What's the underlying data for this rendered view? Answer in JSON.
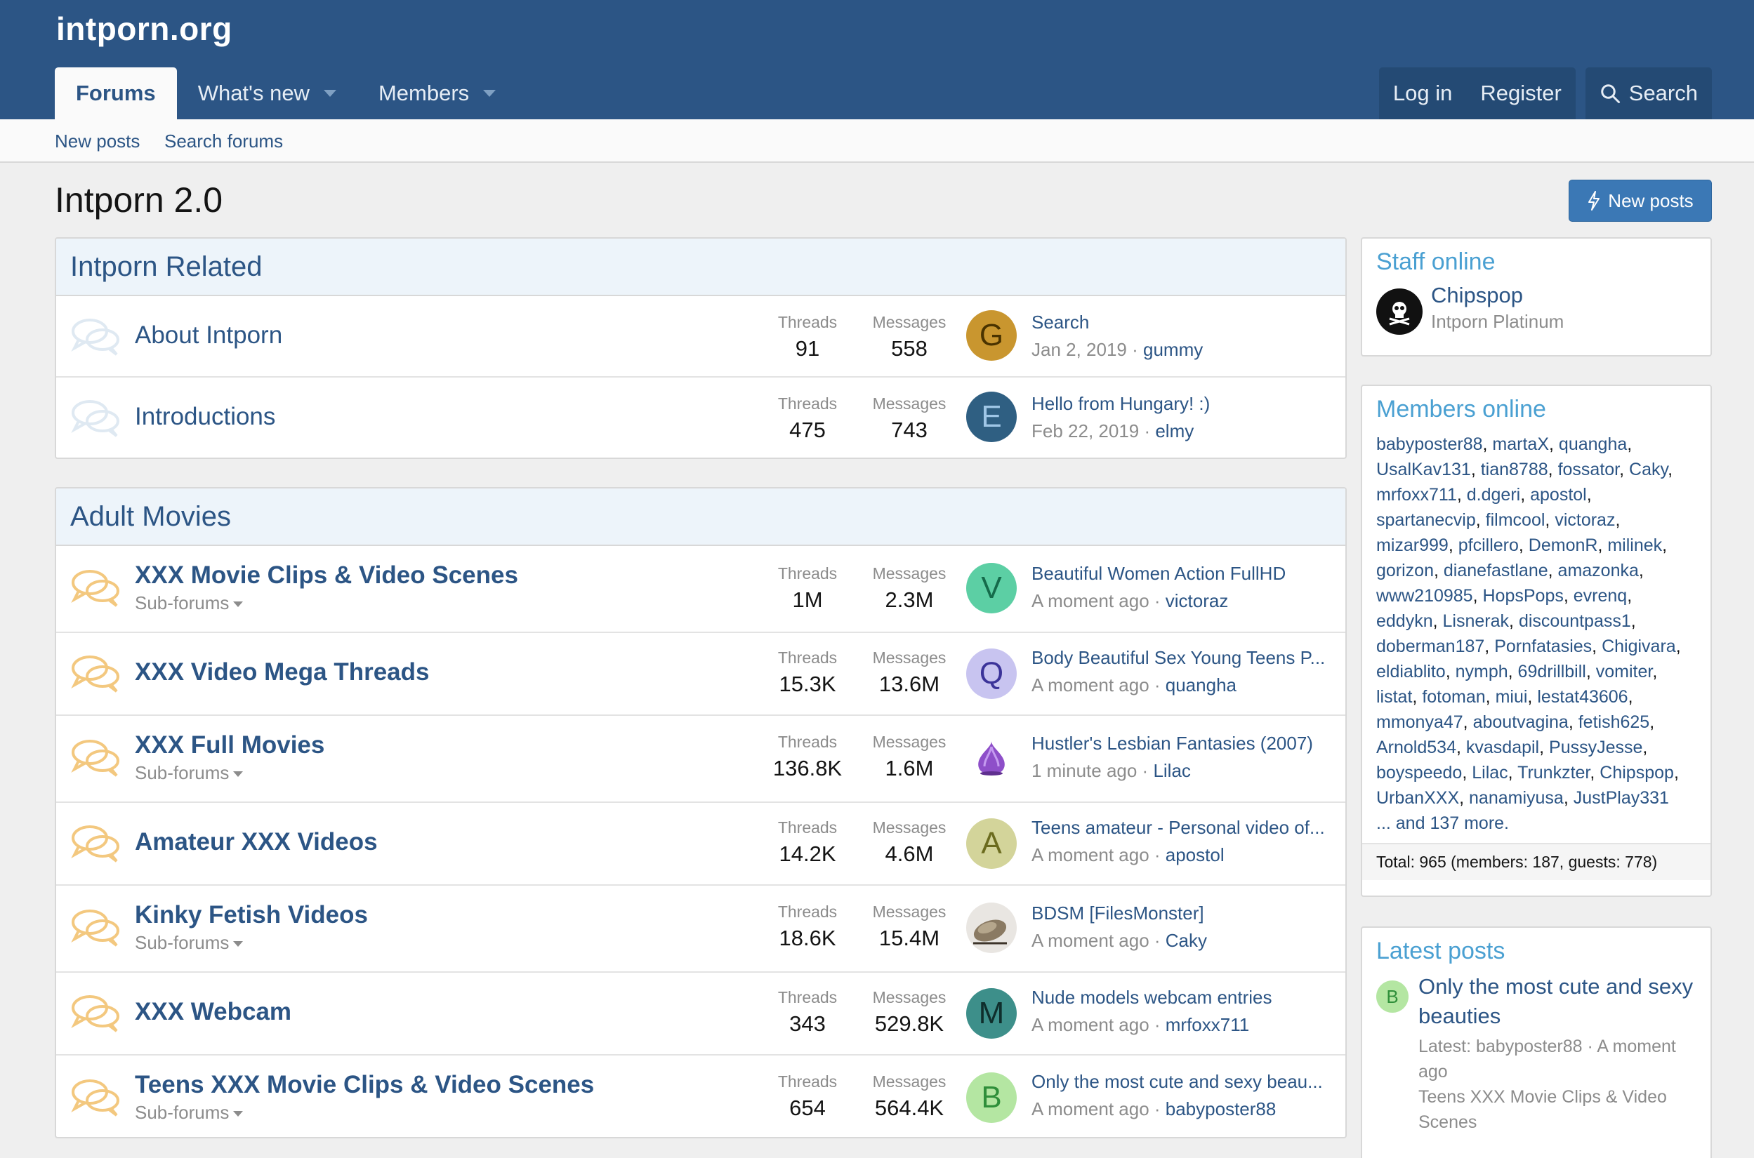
{
  "site": {
    "logo": "intporn.org"
  },
  "nav": {
    "forums": "Forums",
    "whats_new": "What's new",
    "members": "Members",
    "login": "Log in",
    "register": "Register",
    "search": "Search"
  },
  "subnav": {
    "new_posts": "New posts",
    "search_forums": "Search forums"
  },
  "page": {
    "title": "Intporn 2.0",
    "new_posts_button": "New posts"
  },
  "labels": {
    "threads": "Threads",
    "messages": "Messages",
    "subforums": "Sub-forums"
  },
  "categories": [
    {
      "title": "Intporn Related",
      "nodes": [
        {
          "title": "About Intporn",
          "threads": "91",
          "messages": "558",
          "last_title": "Search",
          "last_date": "Jan 2, 2019",
          "last_user": "gummy",
          "avatar_letter": "G",
          "avatar_bg": "#c9962f",
          "avatar_fg": "#4a3300"
        },
        {
          "title": "Introductions",
          "threads": "475",
          "messages": "743",
          "last_title": "Hello from Hungary! :)",
          "last_date": "Feb 22, 2019",
          "last_user": "elmy",
          "avatar_letter": "E",
          "avatar_bg": "#2f5f82",
          "avatar_fg": "#9fc6e6"
        }
      ]
    },
    {
      "title": "Adult Movies",
      "nodes": [
        {
          "title": "XXX Movie Clips & Video Scenes",
          "sub": true,
          "threads": "1M",
          "messages": "2.3M",
          "last_title": "Beautiful Women Action FullHD",
          "last_date": "A moment ago",
          "last_user": "victoraz",
          "avatar_letter": "V",
          "avatar_bg": "#5ccfa4",
          "avatar_fg": "#156b4b"
        },
        {
          "title": "XXX Video Mega Threads",
          "threads": "15.3K",
          "messages": "13.6M",
          "last_title": "Body Beautiful Sex Young Teens P...",
          "last_date": "A moment ago",
          "last_user": "quangha",
          "avatar_letter": "Q",
          "avatar_bg": "#c8c4f0",
          "avatar_fg": "#3b3399"
        },
        {
          "title": "XXX Full Movies",
          "sub": true,
          "threads": "136.8K",
          "messages": "1.6M",
          "last_title": "Hustler's Lesbian Fantasies (2007)",
          "last_date": "1 minute ago",
          "last_user": "Lilac",
          "avatar_letter": "",
          "avatar_bg": "#ffffff",
          "avatar_fg": "#7a3fb0"
        },
        {
          "title": "Amateur XXX Videos",
          "threads": "14.2K",
          "messages": "4.6M",
          "last_title": "Teens amateur - Personal video of...",
          "last_date": "A moment ago",
          "last_user": "apostol",
          "avatar_letter": "A",
          "avatar_bg": "#d3d49a",
          "avatar_fg": "#6b6b1e"
        },
        {
          "title": "Kinky Fetish Videos",
          "sub": true,
          "threads": "18.6K",
          "messages": "15.4M",
          "last_title": "BDSM [FilesMonster]",
          "last_date": "A moment ago",
          "last_user": "Caky",
          "avatar_letter": "",
          "avatar_bg": "#e9e6e2",
          "avatar_fg": "#6b5a44"
        },
        {
          "title": "XXX Webcam",
          "threads": "343",
          "messages": "529.8K",
          "last_title": "Nude models webcam entries",
          "last_date": "A moment ago",
          "last_user": "mrfoxx711",
          "avatar_letter": "M",
          "avatar_bg": "#3d8f8a",
          "avatar_fg": "#0f2e2c"
        },
        {
          "title": "Teens XXX Movie Clips & Video Scenes",
          "sub": true,
          "threads": "654",
          "messages": "564.4K",
          "last_title": "Only the most cute and sexy beau...",
          "last_date": "A moment ago",
          "last_user": "babyposter88",
          "avatar_letter": "B",
          "avatar_bg": "#b4e6a2",
          "avatar_fg": "#2f8f3a"
        }
      ]
    }
  ],
  "sidebar": {
    "staff": {
      "title": "Staff online",
      "name": "Chipspop",
      "role": "Intporn Platinum"
    },
    "members": {
      "title": "Members online",
      "names": [
        "babyposter88",
        "martaX",
        "quangha",
        "UsalKav131",
        "tian8788",
        "fossator",
        "Caky",
        "mrfoxx711",
        "d.dgeri",
        "apostol",
        "spartanecvip",
        "filmcool",
        "victoraz",
        "mizar999",
        "pfcillero",
        "DemonR",
        "milinek",
        "gorizon",
        "dianefastlane",
        "amazonka",
        "www210985",
        "HopsPops",
        "evrenq",
        "eddykn",
        "Lisnerak",
        "discountpass1",
        "doberman187",
        "Pornfatasies",
        "Chigivara",
        "eldiablito",
        "nymph",
        "69drillbill",
        "vomiter",
        "listat",
        "fotoman",
        "miui",
        "lestat43606",
        "mmonya47",
        "aboutvagina",
        "fetish625",
        "Arnold534",
        "kvasdapil",
        "PussyJesse",
        "boyspeedo",
        "Lilac",
        "Trunkzter",
        "Chipspop",
        "UrbanXXX",
        "nanamiyusa",
        "JustPlay331"
      ],
      "more": "... and 137 more.",
      "total": "Total: 965 (members: 187, guests: 778)"
    },
    "latest": {
      "title": "Latest posts",
      "avatar_letter": "B",
      "post_title": "Only the most cute and sexy beauties",
      "meta": "Latest: babyposter88 · A moment ago",
      "forum": "Teens XXX Movie Clips & Video Scenes"
    }
  }
}
